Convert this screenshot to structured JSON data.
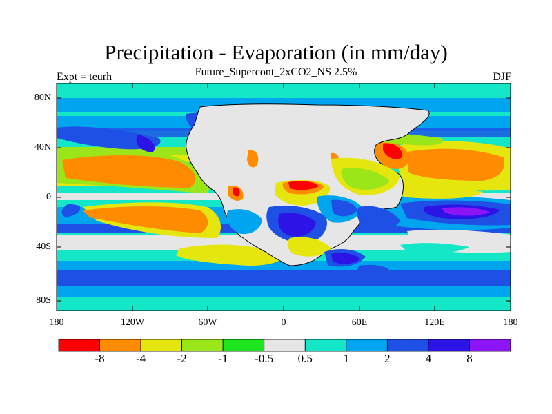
{
  "title": "Precipitation - Evaporation (in mm/day)",
  "subtitle": "Future_Supercont_2xCO2_NS 2.5%",
  "left_label": "Expt = teurh",
  "right_label": "DJF",
  "lat_ticks": [
    "80N",
    "40N",
    "0",
    "40S",
    "80S"
  ],
  "lon_ticks": [
    "180",
    "120W",
    "60W",
    "0",
    "60E",
    "120E",
    "180"
  ],
  "colorbar": {
    "colors": [
      "#ff0000",
      "#ff8c00",
      "#e6e60f",
      "#9be619",
      "#1ee61e",
      "#e6e6e6",
      "#14e6c8",
      "#00a5f0",
      "#1e50e6",
      "#2d14e6",
      "#8c14f5"
    ],
    "labels": [
      "-8",
      "-4",
      "-2",
      "-1",
      "-0.5",
      "0.5",
      "1",
      "2",
      "4",
      "8"
    ]
  },
  "chart_data": {
    "type": "heatmap",
    "title": "Precipitation - Evaporation (in mm/day)",
    "subtitle": "Future_Supercont_2xCO2_NS 2.5%",
    "x_ticks": [
      "180",
      "120W",
      "60W",
      "0",
      "60E",
      "120E",
      "180"
    ],
    "y_ticks": [
      "80N",
      "40N",
      "0",
      "40S",
      "80S"
    ],
    "levels": [
      -8,
      -4,
      -2,
      -1,
      -0.5,
      0.5,
      1,
      2,
      4,
      8
    ]
  }
}
